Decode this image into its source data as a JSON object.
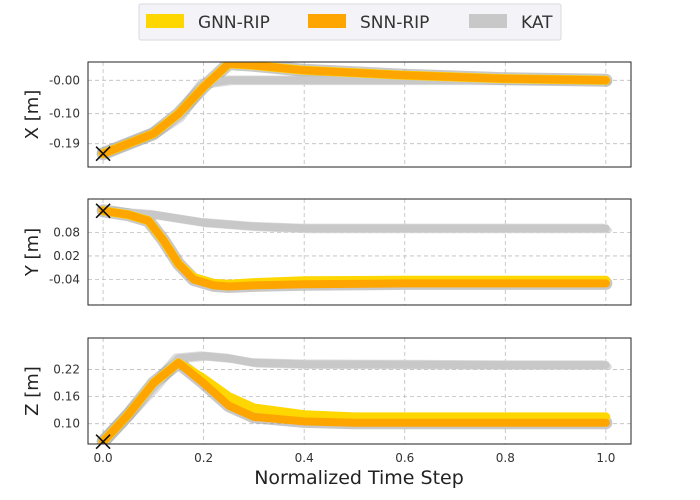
{
  "chart_data": {
    "type": "line",
    "xlabel": "Normalized Time Step",
    "xlim": [
      -0.03,
      1.05
    ],
    "xticks": [
      "0.0",
      "0.2",
      "0.4",
      "0.6",
      "0.8",
      "1.0"
    ],
    "grid": true,
    "legend": {
      "placement": "top-center",
      "entries": [
        {
          "name": "GNN-RIP",
          "color": "#ffd700"
        },
        {
          "name": "SNN-RIP",
          "color": "#ffa500"
        },
        {
          "name": "KAT",
          "color": "#c8c8c8"
        }
      ]
    },
    "panels": [
      {
        "ylabel": "X [m]",
        "ylim": [
          -0.26,
          0.055
        ],
        "yticks": [
          {
            "v": -0.19,
            "t": "-0.19"
          },
          {
            "v": -0.1,
            "t": "-0.10"
          },
          {
            "v": 0.0,
            "t": "-0.00"
          }
        ],
        "start": {
          "x": 0.0,
          "y": -0.22
        },
        "series": [
          {
            "name": "GNN-RIP",
            "points": [
              [
                0,
                -0.22
              ],
              [
                0.05,
                -0.19
              ],
              [
                0.1,
                -0.16
              ],
              [
                0.15,
                -0.1
              ],
              [
                0.2,
                -0.02
              ],
              [
                0.25,
                0.05
              ],
              [
                0.3,
                0.045
              ],
              [
                0.4,
                0.03
              ],
              [
                0.6,
                0.015
              ],
              [
                0.8,
                0.005
              ],
              [
                1.0,
                0.0
              ]
            ]
          },
          {
            "name": "SNN-RIP",
            "points": [
              [
                0,
                -0.22
              ],
              [
                0.05,
                -0.19
              ],
              [
                0.1,
                -0.16
              ],
              [
                0.15,
                -0.1
              ],
              [
                0.2,
                -0.02
              ],
              [
                0.25,
                0.05
              ],
              [
                0.3,
                0.045
              ],
              [
                0.4,
                0.03
              ],
              [
                0.6,
                0.015
              ],
              [
                0.8,
                0.005
              ],
              [
                1.0,
                0.0
              ]
            ]
          },
          {
            "name": "KAT",
            "points": [
              [
                0,
                -0.22
              ],
              [
                0.05,
                -0.19
              ],
              [
                0.1,
                -0.16
              ],
              [
                0.15,
                -0.11
              ],
              [
                0.2,
                -0.01
              ],
              [
                0.25,
                0.0
              ],
              [
                0.4,
                0.0
              ],
              [
                0.6,
                0.0
              ],
              [
                0.8,
                0.0
              ],
              [
                1.0,
                0.0
              ]
            ]
          }
        ]
      },
      {
        "ylabel": "Y [m]",
        "ylim": [
          -0.105,
          0.165
        ],
        "yticks": [
          {
            "v": 0.08,
            "t": "0.08"
          },
          {
            "v": 0.02,
            "t": "0.02"
          },
          {
            "v": -0.04,
            "t": "-0.04"
          }
        ],
        "start": {
          "x": 0.0,
          "y": 0.135
        },
        "series": [
          {
            "name": "GNN-RIP",
            "points": [
              [
                0,
                0.135
              ],
              [
                0.05,
                0.125
              ],
              [
                0.09,
                0.11
              ],
              [
                0.12,
                0.06
              ],
              [
                0.15,
                0.0
              ],
              [
                0.18,
                -0.035
              ],
              [
                0.22,
                -0.05
              ],
              [
                0.25,
                -0.052
              ],
              [
                0.3,
                -0.048
              ],
              [
                0.4,
                -0.043
              ],
              [
                0.6,
                -0.042
              ],
              [
                0.8,
                -0.042
              ],
              [
                1.0,
                -0.042
              ]
            ]
          },
          {
            "name": "SNN-RIP",
            "points": [
              [
                0,
                0.135
              ],
              [
                0.05,
                0.125
              ],
              [
                0.09,
                0.11
              ],
              [
                0.12,
                0.06
              ],
              [
                0.15,
                0.0
              ],
              [
                0.18,
                -0.04
              ],
              [
                0.22,
                -0.055
              ],
              [
                0.25,
                -0.058
              ],
              [
                0.3,
                -0.055
              ],
              [
                0.4,
                -0.052
              ],
              [
                0.6,
                -0.05
              ],
              [
                0.8,
                -0.05
              ],
              [
                1.0,
                -0.05
              ]
            ]
          },
          {
            "name": "KAT",
            "points": [
              [
                0,
                0.135
              ],
              [
                0.1,
                0.125
              ],
              [
                0.2,
                0.105
              ],
              [
                0.3,
                0.095
              ],
              [
                0.4,
                0.09
              ],
              [
                0.6,
                0.09
              ],
              [
                0.8,
                0.09
              ],
              [
                1.0,
                0.09
              ]
            ]
          }
        ]
      },
      {
        "ylabel": "Z [m]",
        "ylim": [
          0.055,
          0.29
        ],
        "yticks": [
          {
            "v": 0.1,
            "t": "0.10"
          },
          {
            "v": 0.16,
            "t": "0.16"
          },
          {
            "v": 0.22,
            "t": "0.22"
          }
        ],
        "start": {
          "x": 0.0,
          "y": 0.06
        },
        "series": [
          {
            "name": "GNN-RIP",
            "points": [
              [
                0,
                0.06
              ],
              [
                0.05,
                0.12
              ],
              [
                0.1,
                0.19
              ],
              [
                0.15,
                0.235
              ],
              [
                0.2,
                0.2
              ],
              [
                0.25,
                0.16
              ],
              [
                0.3,
                0.135
              ],
              [
                0.4,
                0.12
              ],
              [
                0.5,
                0.115
              ],
              [
                0.6,
                0.115
              ],
              [
                0.8,
                0.115
              ],
              [
                1.0,
                0.115
              ]
            ]
          },
          {
            "name": "SNN-RIP",
            "points": [
              [
                0,
                0.06
              ],
              [
                0.05,
                0.12
              ],
              [
                0.1,
                0.19
              ],
              [
                0.15,
                0.235
              ],
              [
                0.2,
                0.19
              ],
              [
                0.25,
                0.14
              ],
              [
                0.3,
                0.115
              ],
              [
                0.4,
                0.105
              ],
              [
                0.5,
                0.102
              ],
              [
                0.6,
                0.102
              ],
              [
                0.8,
                0.102
              ],
              [
                1.0,
                0.102
              ]
            ]
          },
          {
            "name": "KAT",
            "points": [
              [
                0,
                0.06
              ],
              [
                0.1,
                0.18
              ],
              [
                0.15,
                0.245
              ],
              [
                0.2,
                0.25
              ],
              [
                0.25,
                0.245
              ],
              [
                0.3,
                0.235
              ],
              [
                0.4,
                0.232
              ],
              [
                0.6,
                0.231
              ],
              [
                0.8,
                0.23
              ],
              [
                1.0,
                0.23
              ]
            ]
          }
        ]
      }
    ]
  }
}
